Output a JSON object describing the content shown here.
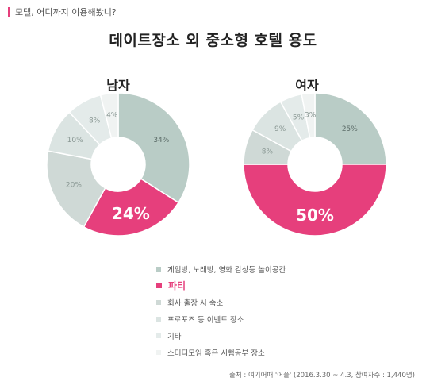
{
  "header": {
    "subtitle": "모텔, 어디까지 이용해봤니?",
    "title": "데이트장소 외 중소형 호텔 용도"
  },
  "colors": {
    "accent": "#e63f7c",
    "c1": "#b9ccc6",
    "c2": "#e63f7c",
    "c3": "#cfd9d6",
    "c4": "#dbe4e2",
    "c5": "#e4ebea",
    "c6": "#f0f3f2",
    "label_dark": "#5a6a66",
    "label_light": "#8a9894"
  },
  "legend": [
    {
      "label": "게임방, 노래방, 영화 감상등 놀이공간",
      "color": "#b9ccc6",
      "highlight": false
    },
    {
      "label": "파티",
      "color": "#e63f7c",
      "highlight": true
    },
    {
      "label": "회사 출장 시 숙소",
      "color": "#cfd9d6",
      "highlight": false
    },
    {
      "label": "프로포즈 등 이벤트 장소",
      "color": "#dbe4e2",
      "highlight": false
    },
    {
      "label": "기타",
      "color": "#e4ebea",
      "highlight": false
    },
    {
      "label": "스터디모임 혹은 시험공부 장소",
      "color": "#f0f3f2",
      "highlight": false
    }
  ],
  "source": "출처 : 여기어때 '어플' (2016.3.30 ~ 4.3, 참여자수 : 1,440명)",
  "chart_data": [
    {
      "type": "pie",
      "title": "남자",
      "categories": [
        "게임방, 노래방, 영화 감상등 놀이공간",
        "파티",
        "회사 출장 시 숙소",
        "프로포즈 등 이벤트 장소",
        "기타",
        "스터디모임 혹은 시험공부 장소"
      ],
      "values": [
        34,
        24,
        20,
        10,
        8,
        4
      ],
      "labels": [
        "34%",
        "24%",
        "20%",
        "10%",
        "8%",
        "4%"
      ]
    },
    {
      "type": "pie",
      "title": "여자",
      "categories": [
        "게임방, 노래방, 영화 감상등 놀이공간",
        "파티",
        "회사 출장 시 숙소",
        "프로포즈 등 이벤트 장소",
        "기타",
        "스터디모임 혹은 시험공부 장소"
      ],
      "values": [
        25,
        50,
        8,
        9,
        5,
        3
      ],
      "labels": [
        "25%",
        "50%",
        "8%",
        "9%",
        "5%",
        "3%"
      ]
    }
  ]
}
